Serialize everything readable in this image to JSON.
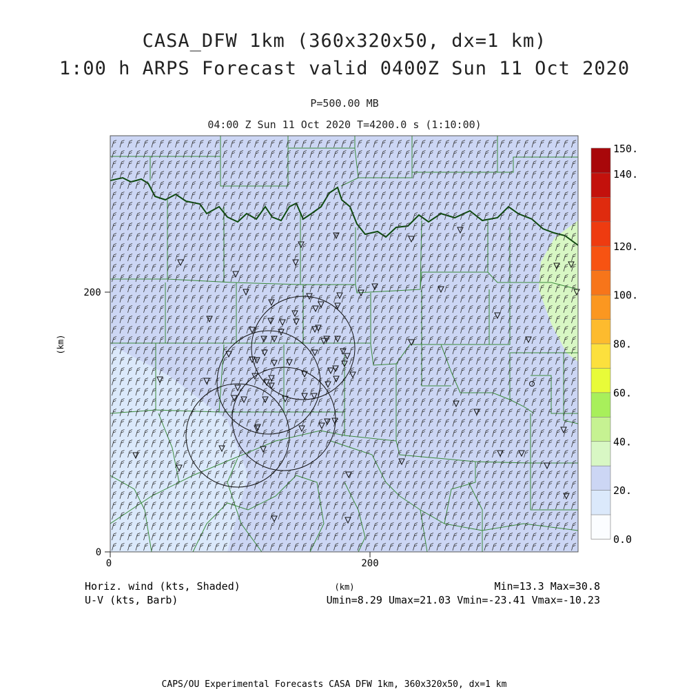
{
  "title_line1": "CASA_DFW 1km (360x320x50, dx=1 km)",
  "title_line2": "1:00 h ARPS Forecast valid 0400Z Sun 11 Oct 2020",
  "level_label": "P=500.00 MB",
  "time_label": "04:00 Z Sun 11 Oct 2020    T=4200.0 s (1:10:00)",
  "axes": {
    "x_unit": "(km)",
    "y_unit": "(km)",
    "x_ticks": [
      "0",
      "200"
    ],
    "y_ticks": [
      "0",
      "200"
    ]
  },
  "colorbar": {
    "labels": [
      "150.",
      "140.",
      "120.",
      "100.",
      "80.",
      "60.",
      "40.",
      "20.",
      "0.0"
    ],
    "colors": [
      "#fbfdff",
      "#dbe9fb",
      "#ccd6f4",
      "#d8f7c4",
      "#c6f292",
      "#a8ef5b",
      "#e8fb39",
      "#fce03d",
      "#fdbb2e",
      "#fb9720",
      "#f7751a",
      "#f75312",
      "#ee3b10",
      "#df2b0e",
      "#c3110c",
      "#a8070a"
    ]
  },
  "footer": {
    "left_line1": "Horiz. wind (kts, Shaded)",
    "left_line2": "U-V (kts, Barb)",
    "center_unit": "(km)",
    "stats_line1": "Min=13.3 Max=30.8",
    "stats_line2": "Umin=8.29 Umax=21.03 Vmin=-23.41 Vmax=-10.23",
    "credit": "CAPS/OU Experimental Forecasts  CASA DFW 1km, 360x320x50, dx=1 km"
  },
  "colors": {
    "field_base": "#ccd6f4",
    "field_light": "#dbe9fb",
    "field_green": "#d8f7c4",
    "county_lines": "#3a8a3a",
    "state_line": "#0e4a0e",
    "barb": "#333333"
  },
  "icons": {
    "radar_marker": "down-triangle-icon",
    "radar_range": "range-ring"
  }
}
